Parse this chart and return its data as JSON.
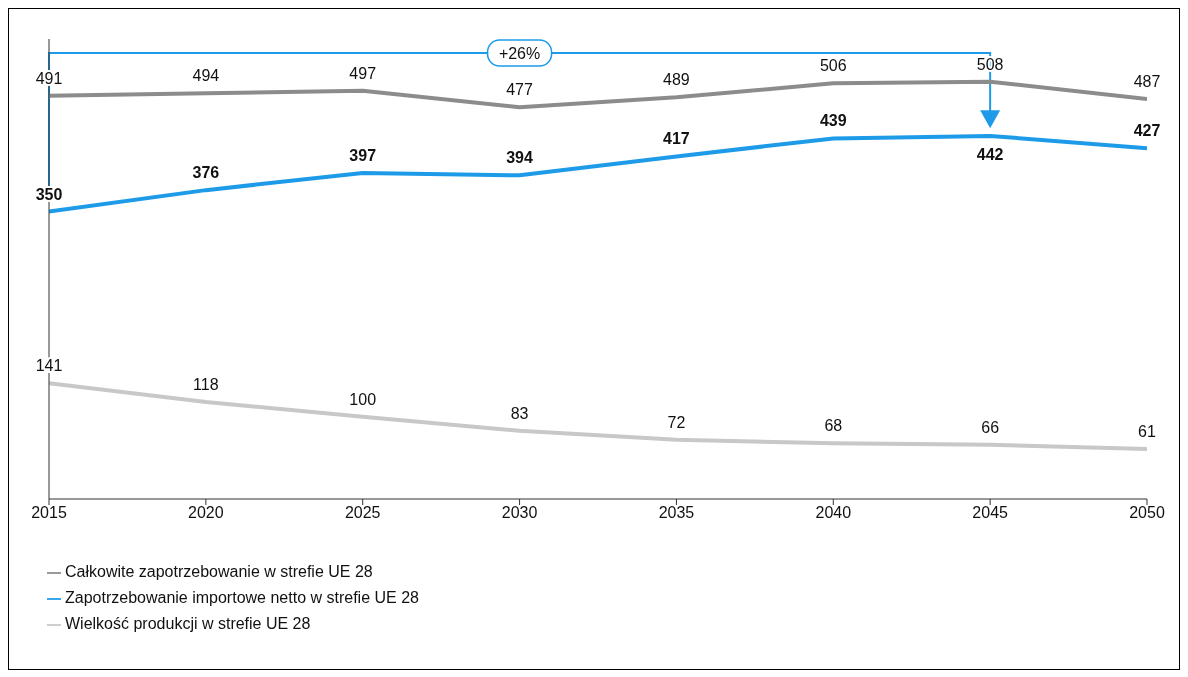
{
  "chart_data": {
    "type": "line",
    "x": [
      2015,
      2020,
      2025,
      2030,
      2035,
      2040,
      2045,
      2050
    ],
    "series": [
      {
        "name": "Całkowite zapotrzebowanie w strefie UE 28",
        "color": "#8c8c8c",
        "values": [
          491,
          494,
          497,
          477,
          489,
          506,
          508,
          487
        ]
      },
      {
        "name": "Zapotrzebowanie importowe netto w strefie UE 28",
        "color": "#1e9be8",
        "values": [
          350,
          376,
          397,
          394,
          417,
          439,
          442,
          427
        ]
      },
      {
        "name": "Wielkość produkcji w strefie UE 28",
        "color": "#c8c8c8",
        "values": [
          141,
          118,
          100,
          83,
          72,
          68,
          66,
          61
        ]
      }
    ],
    "xlim": [
      2015,
      2050
    ],
    "xticks": [
      2015,
      2020,
      2025,
      2030,
      2035,
      2040,
      2045,
      2050
    ],
    "ylim": [
      0,
      560
    ],
    "tick_labels": "x",
    "data_labels": true,
    "grid": false,
    "legend": "bottom left",
    "marker": "none",
    "line_style": "solid",
    "annotations": [
      "+26%"
    ]
  }
}
